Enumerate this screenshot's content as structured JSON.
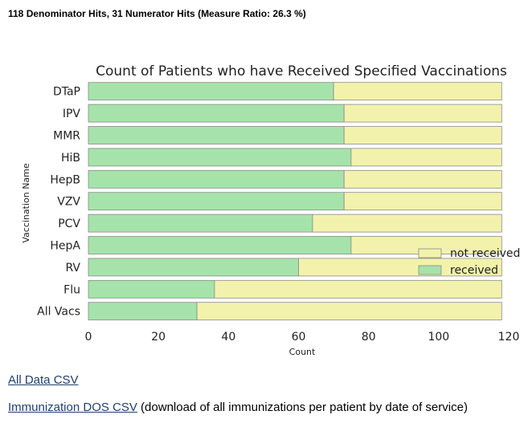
{
  "summary": "118 Denominator Hits, 31 Numerator Hits (Measure Ratio: 26.3 %)",
  "chart_data": {
    "type": "bar",
    "orientation": "horizontal",
    "stacked": true,
    "title": "Count of Patients who have Received Specified Vaccinations",
    "xlabel": "Count",
    "ylabel": "Vaccination Name",
    "xlim": [
      0,
      120
    ],
    "x_ticks": [
      "0",
      "20",
      "40",
      "60",
      "80",
      "100",
      "120"
    ],
    "categories": [
      "DTaP",
      "IPV",
      "MMR",
      "HiB",
      "HepB",
      "VZV",
      "PCV",
      "HepA",
      "RV",
      "Flu",
      "All Vacs"
    ],
    "series": [
      {
        "name": "received",
        "color": "#a6e3ab",
        "values": [
          70,
          73,
          73,
          75,
          73,
          73,
          64,
          75,
          60,
          36,
          31
        ]
      },
      {
        "name": "not received",
        "color": "#f2f2ac",
        "values": [
          48,
          45,
          45,
          43,
          45,
          45,
          54,
          43,
          58,
          82,
          87
        ]
      }
    ],
    "legend_position": "lower-right",
    "legend_order": [
      "not received",
      "received"
    ],
    "grid": false
  },
  "links": {
    "all_data": "All Data CSV",
    "immunization_dos": "Immunization DOS CSV",
    "immunization_dos_note": " (download of all immunizations per patient by date of service)"
  }
}
